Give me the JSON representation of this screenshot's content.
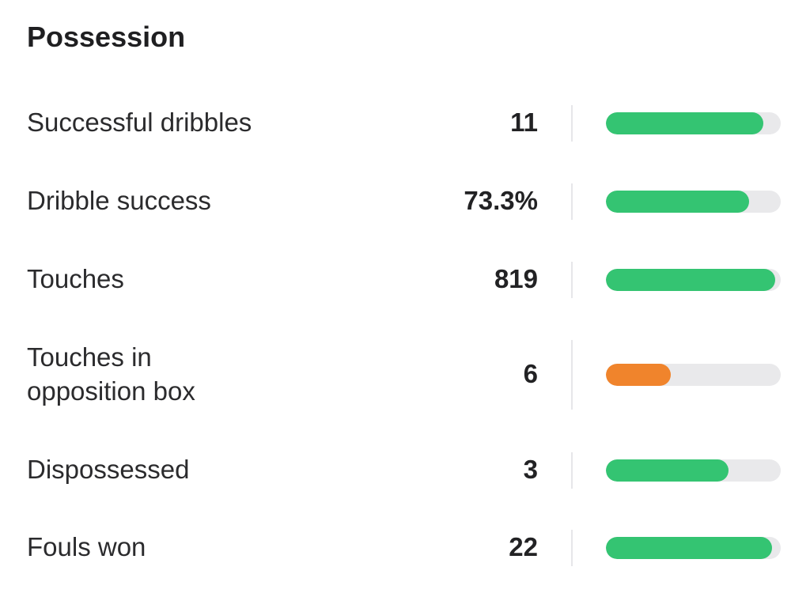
{
  "section": {
    "title": "Possession"
  },
  "colors": {
    "good": "#34c472",
    "warning": "#f0842c",
    "track": "#e9e9eb"
  },
  "stats": [
    {
      "label": "Successful dribbles",
      "value": "11",
      "bar_fraction": 0.9,
      "status": "good"
    },
    {
      "label": "Dribble success",
      "value": "73.3%",
      "bar_fraction": 0.82,
      "status": "good"
    },
    {
      "label": "Touches",
      "value": "819",
      "bar_fraction": 0.97,
      "status": "good"
    },
    {
      "label": "Touches in\nopposition box",
      "value": "6",
      "bar_fraction": 0.37,
      "status": "warning"
    },
    {
      "label": "Dispossessed",
      "value": "3",
      "bar_fraction": 0.7,
      "status": "good"
    },
    {
      "label": "Fouls won",
      "value": "22",
      "bar_fraction": 0.95,
      "status": "good"
    }
  ]
}
